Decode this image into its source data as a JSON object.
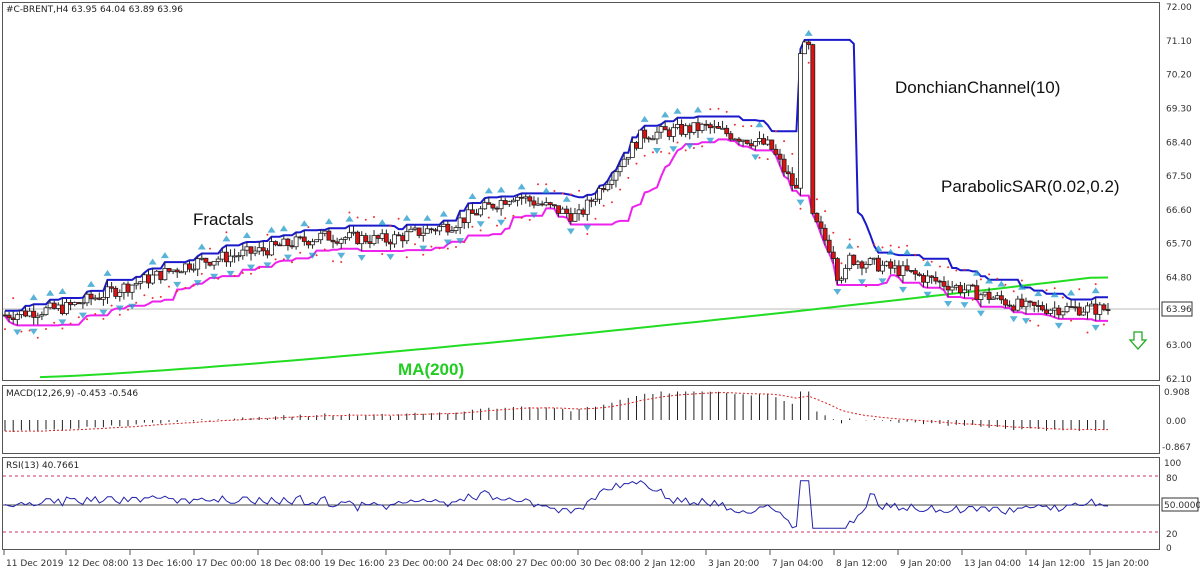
{
  "header": {
    "symbol_line": "#C-BRENT,H4  63.95 64.04 63.89 63.96",
    "macd_line": "MACD(12,26,9) -0.453 -0.546",
    "rsi_line": "RSI(13) 40.7661"
  },
  "annotations": {
    "fractals": "Fractals",
    "donchian": "DonchianChannel(10)",
    "sar": "ParabolicSAR(0.02,0.2)",
    "ma": "MA(200)"
  },
  "price_axis": {
    "ticks": [
      "72.00",
      "71.10",
      "70.20",
      "69.30",
      "68.40",
      "67.50",
      "66.60",
      "65.70",
      "64.80",
      "63.96",
      "63.00",
      "62.10"
    ],
    "current_price": "63.96"
  },
  "macd_axis": {
    "ticks": [
      "0.908",
      "0.00",
      "-0.867"
    ]
  },
  "rsi_axis": {
    "ticks": [
      "100",
      "80",
      "50.0000",
      "20",
      "0"
    ]
  },
  "time_axis": {
    "labels": [
      "11 Dec 2019",
      "12 Dec 08:00",
      "13 Dec 16:00",
      "17 Dec 00:00",
      "18 Dec 08:00",
      "19 Dec 16:00",
      "23 Dec 00:00",
      "24 Dec 08:00",
      "27 Dec 00:00",
      "30 Dec 08:00",
      "2 Jan 12:00",
      "3 Jan 20:00",
      "7 Jan 04:00",
      "8 Jan 12:00",
      "9 Jan 20:00",
      "13 Jan 04:00",
      "14 Jan 12:00",
      "15 Jan 20:00"
    ]
  },
  "colors": {
    "donchian": "#1a1acc",
    "sar_band": "#ee22ee",
    "sar_dots": "#ee3333",
    "ma": "#22dd22",
    "bear": "#dd1111",
    "bull": "#ffffff",
    "fractal": "#2299cc",
    "macd_signal": "#dd2222",
    "rsi": "#2222aa",
    "level": "#cc3366"
  },
  "chart_data": {
    "type": "candlestick",
    "symbol": "#C-BRENT",
    "timeframe": "H4",
    "last_bar": {
      "open": 63.95,
      "high": 64.04,
      "low": 63.89,
      "close": 63.96
    },
    "close_path": [
      {
        "x": "11 Dec 2019",
        "y": 63.8
      },
      {
        "x": "12 Dec 08:00",
        "y": 64.0
      },
      {
        "x": "13 Dec 16:00",
        "y": 64.6
      },
      {
        "x": "17 Dec 00:00",
        "y": 65.2
      },
      {
        "x": "18 Dec 08:00",
        "y": 65.5
      },
      {
        "x": "19 Dec 16:00",
        "y": 65.9
      },
      {
        "x": "23 Dec 00:00",
        "y": 65.8
      },
      {
        "x": "24 Dec 08:00",
        "y": 66.2
      },
      {
        "x": "27 Dec 00:00",
        "y": 67.0
      },
      {
        "x": "30 Dec 08:00",
        "y": 66.4
      },
      {
        "x": "2 Jan 12:00",
        "y": 68.6
      },
      {
        "x": "3 Jan 20:00",
        "y": 68.8
      },
      {
        "x": "7 Jan 04:00",
        "y": 68.3
      },
      {
        "x": "8 Jan 12:00",
        "y": 65.4
      },
      {
        "x": "9 Jan 20:00",
        "y": 65.0
      },
      {
        "x": "13 Jan 04:00",
        "y": 64.5
      },
      {
        "x": "14 Jan 12:00",
        "y": 64.0
      },
      {
        "x": "15 Jan 20:00",
        "y": 63.96
      }
    ],
    "price_range": [
      62.1,
      72.0
    ],
    "macd_range": [
      -0.867,
      0.908
    ],
    "rsi_levels": [
      20,
      50,
      80
    ],
    "signal": "down-arrow"
  }
}
